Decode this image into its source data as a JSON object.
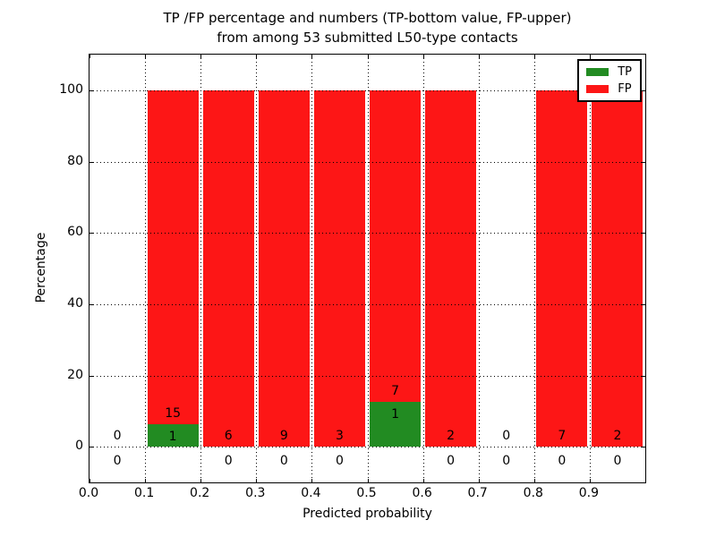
{
  "chart_data": {
    "type": "bar",
    "stacked": true,
    "title_line1": "TP /FP percentage and numbers (TP-bottom value, FP-upper)",
    "title_line2": "from among 53 submitted L50-type contacts",
    "xlabel": "Predicted probability",
    "ylabel": "Percentage",
    "xlim": [
      0.0,
      1.0
    ],
    "ylim": [
      -10,
      110
    ],
    "xticks": [
      {
        "v": 0.0,
        "label": "0.0"
      },
      {
        "v": 0.1,
        "label": "0.1"
      },
      {
        "v": 0.2,
        "label": "0.2"
      },
      {
        "v": 0.3,
        "label": "0.3"
      },
      {
        "v": 0.4,
        "label": "0.4"
      },
      {
        "v": 0.5,
        "label": "0.5"
      },
      {
        "v": 0.6,
        "label": "0.6"
      },
      {
        "v": 0.7,
        "label": "0.7"
      },
      {
        "v": 0.8,
        "label": "0.8"
      },
      {
        "v": 0.9,
        "label": "0.9"
      }
    ],
    "yticks": [
      {
        "v": 0,
        "label": "0"
      },
      {
        "v": 20,
        "label": "20"
      },
      {
        "v": 40,
        "label": "40"
      },
      {
        "v": 60,
        "label": "60"
      },
      {
        "v": 80,
        "label": "80"
      },
      {
        "v": 100,
        "label": "100"
      }
    ],
    "grid": true,
    "legend": {
      "position": "upper right",
      "entries": [
        {
          "label": "TP",
          "color": "#228b22"
        },
        {
          "label": "FP",
          "color": "#fd1616"
        }
      ]
    },
    "colors": {
      "tp": "#228b22",
      "fp": "#fd1616",
      "grid": "#000000",
      "background": "#ffffff"
    },
    "total_contacts": 53,
    "bins": [
      {
        "range": [
          0.0,
          0.1
        ],
        "tp_count": 0,
        "fp_count": 0,
        "tp_pct": 0,
        "fp_pct": 0
      },
      {
        "range": [
          0.1,
          0.2
        ],
        "tp_count": 1,
        "fp_count": 15,
        "tp_pct": 6.25,
        "fp_pct": 93.75
      },
      {
        "range": [
          0.2,
          0.3
        ],
        "tp_count": 0,
        "fp_count": 6,
        "tp_pct": 0,
        "fp_pct": 100
      },
      {
        "range": [
          0.3,
          0.4
        ],
        "tp_count": 0,
        "fp_count": 9,
        "tp_pct": 0,
        "fp_pct": 100
      },
      {
        "range": [
          0.4,
          0.5
        ],
        "tp_count": 0,
        "fp_count": 3,
        "tp_pct": 0,
        "fp_pct": 100
      },
      {
        "range": [
          0.5,
          0.6
        ],
        "tp_count": 1,
        "fp_count": 7,
        "tp_pct": 12.5,
        "fp_pct": 87.5
      },
      {
        "range": [
          0.6,
          0.7
        ],
        "tp_count": 0,
        "fp_count": 2,
        "tp_pct": 0,
        "fp_pct": 100
      },
      {
        "range": [
          0.7,
          0.8
        ],
        "tp_count": 0,
        "fp_count": 0,
        "tp_pct": 0,
        "fp_pct": 0
      },
      {
        "range": [
          0.8,
          0.9
        ],
        "tp_count": 0,
        "fp_count": 7,
        "tp_pct": 0,
        "fp_pct": 100
      },
      {
        "range": [
          0.9,
          1.0
        ],
        "tp_count": 0,
        "fp_count": 2,
        "tp_pct": 0,
        "fp_pct": 100
      }
    ]
  }
}
